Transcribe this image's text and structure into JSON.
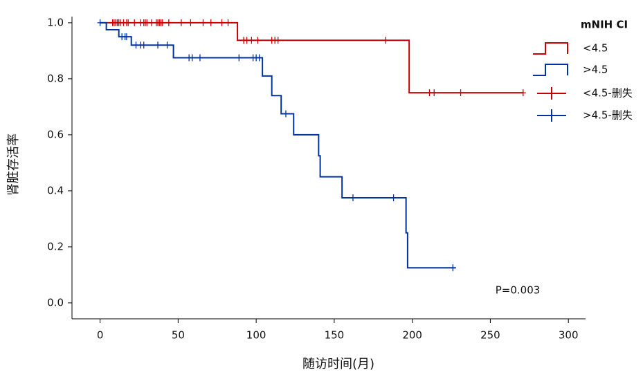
{
  "chart_data": {
    "type": "survival",
    "x_label": "随访时间(月)",
    "y_label": "肾脏存活率",
    "legend_title": "mNIH CI",
    "annotation": "P=0.003",
    "xlim": [
      -18,
      311
    ],
    "ylim": [
      -0.057,
      1.022
    ],
    "xticks": [
      0,
      50,
      100,
      150,
      200,
      250,
      300
    ],
    "yticks": [
      {
        "value": 0,
        "label": "0.0"
      },
      0.2,
      0.4,
      0.6,
      0.8,
      {
        "value": 1,
        "label": "1.0"
      }
    ],
    "series": [
      {
        "name": "<4.5",
        "color": "#cc0000",
        "style": "step",
        "x": [
          0,
          88,
          198,
          271
        ],
        "values": [
          1,
          0.9375,
          0.75,
          0.75
        ]
      },
      {
        "name": ">4.5",
        "color": "#0033a0",
        "style": "step",
        "x": [
          0,
          4,
          12,
          20,
          47,
          104,
          110,
          116,
          124,
          140,
          141,
          155,
          196,
          197,
          228
        ],
        "values": [
          1,
          0.975,
          0.95,
          0.92,
          0.875,
          0.81,
          0.74,
          0.675,
          0.6,
          0.525,
          0.45,
          0.375,
          0.25,
          0.125,
          0.125
        ]
      },
      {
        "name": "<4.5-删失",
        "color": "#cc0000",
        "style": "censor",
        "x": [
          8,
          9,
          10,
          11,
          12,
          13,
          15,
          17,
          18,
          22,
          26,
          28,
          29,
          30,
          33,
          36,
          37,
          38,
          39,
          40,
          44,
          52,
          58,
          66,
          71,
          78,
          82,
          92,
          94,
          97,
          101,
          110,
          112,
          114,
          183,
          211,
          214,
          231,
          271
        ],
        "values": [
          1,
          1,
          1,
          1,
          1,
          1,
          1,
          1,
          1,
          1,
          1,
          1,
          1,
          1,
          1,
          1,
          1,
          1,
          1,
          1,
          1,
          1,
          1,
          1,
          1,
          1,
          1,
          0.9375,
          0.9375,
          0.9375,
          0.9375,
          0.9375,
          0.9375,
          0.9375,
          0.9375,
          0.75,
          0.75,
          0.75,
          0.75
        ]
      },
      {
        "name": ">4.5-删失",
        "color": "#0033a0",
        "style": "censor",
        "x": [
          0,
          14,
          16,
          17,
          23,
          26,
          28,
          37,
          43,
          57,
          59,
          64,
          89,
          98,
          100,
          102,
          119,
          162,
          188,
          226
        ],
        "values": [
          1,
          0.95,
          0.95,
          0.95,
          0.92,
          0.92,
          0.92,
          0.92,
          0.92,
          0.875,
          0.875,
          0.875,
          0.875,
          0.875,
          0.875,
          0.875,
          0.675,
          0.375,
          0.375,
          0.125
        ]
      }
    ]
  }
}
